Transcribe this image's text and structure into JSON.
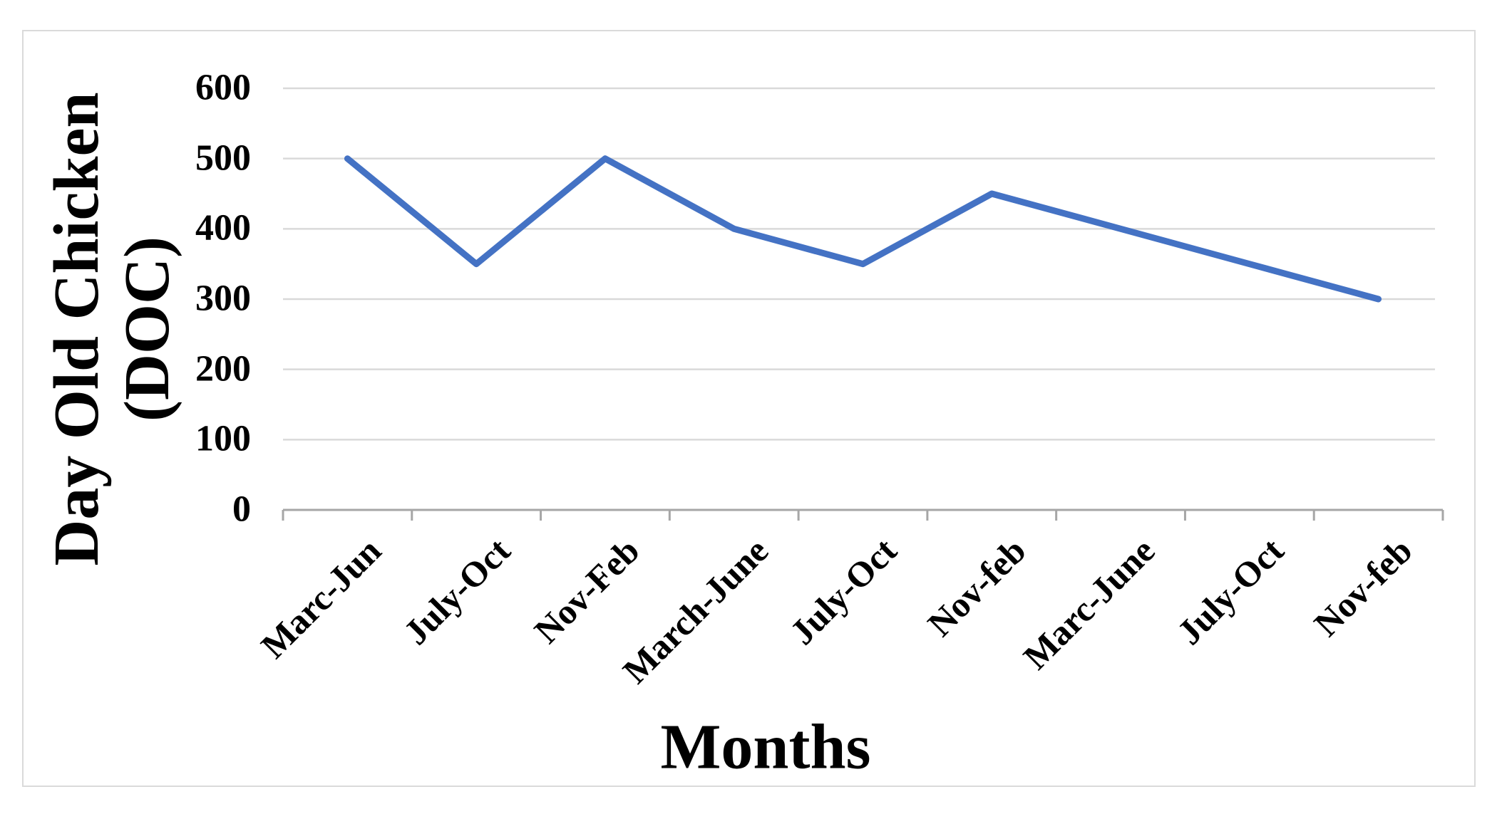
{
  "chart_data": {
    "type": "line",
    "title": "",
    "categories": [
      "Marc-Jun",
      "July-Oct",
      "Nov-Feb",
      "March-June",
      "July-Oct",
      "Nov-feb",
      "Marc-June",
      "July-Oct",
      "Nov-feb"
    ],
    "series": [
      {
        "name": "Day Old Chicken (DOC)",
        "values": [
          500,
          350,
          500,
          400,
          350,
          450,
          400,
          350,
          300
        ]
      }
    ],
    "xlabel": "Months",
    "ylabel": "Day Old Chicken (DOC)",
    "ylabel_lines": [
      "Day Old Chicken",
      "(DOC)"
    ],
    "y_ticks": [
      0,
      100,
      200,
      300,
      400,
      500,
      600
    ],
    "ylim": [
      0,
      600
    ],
    "grid": "horizontal",
    "legend_position": "none",
    "colors": {
      "line": "#4472C4",
      "gridline": "#d9d9d9",
      "axis": "#a6a6a6",
      "text": "#000000",
      "background": "#ffffff"
    }
  }
}
